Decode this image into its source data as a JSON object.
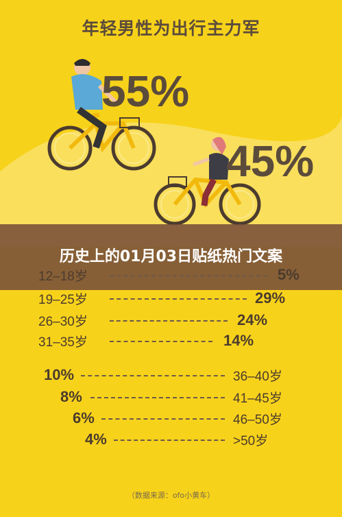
{
  "poster": {
    "title": "年轻男性为出行主力军",
    "male_percent": "55%",
    "female_percent": "45%"
  },
  "overlay": {
    "headline": "历史上的01月03日贴纸热门文案"
  },
  "male_rows": [
    {
      "age": "12–18岁",
      "value": "5%"
    },
    {
      "age": "19–25岁",
      "value": "29%"
    },
    {
      "age": "26–30岁",
      "value": "24%"
    },
    {
      "age": "31–35岁",
      "value": "14%"
    }
  ],
  "female_rows": [
    {
      "value": "10%",
      "age": "36–40岁"
    },
    {
      "value": "8%",
      "age": "41–45岁"
    },
    {
      "value": "6%",
      "age": "46–50岁"
    },
    {
      "value": "4%",
      "age": ">50岁"
    }
  ],
  "source": "（数据来源：ofo小黄车）",
  "colors": {
    "background": "#f7d21a",
    "text": "#5b4b3b",
    "overlay": "#784e3a",
    "male_shirt": "#5aa9d6",
    "female_shirt": "#e07a7a"
  }
}
